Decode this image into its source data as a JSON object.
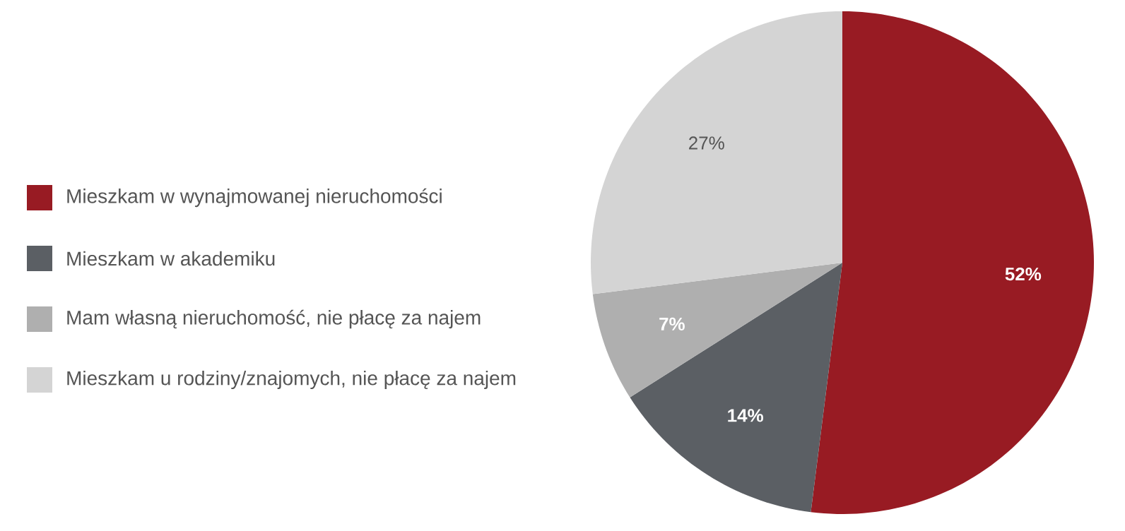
{
  "chart_data": {
    "type": "pie",
    "categories": [
      "Mieszkam w wynajmowanej nieruchomości",
      "Mieszkam w akademiku",
      "Mam własną nieruchomość, nie płacę za najem",
      "Mieszkam u rodziny/znajomych, nie płacę za najem"
    ],
    "values": [
      52,
      14,
      7,
      27
    ],
    "value_labels": [
      "52%",
      "14%",
      "7%",
      "27%"
    ],
    "colors": [
      "#981b23",
      "#5b5f64",
      "#afafaf",
      "#d4d4d4"
    ],
    "legend": "left"
  }
}
